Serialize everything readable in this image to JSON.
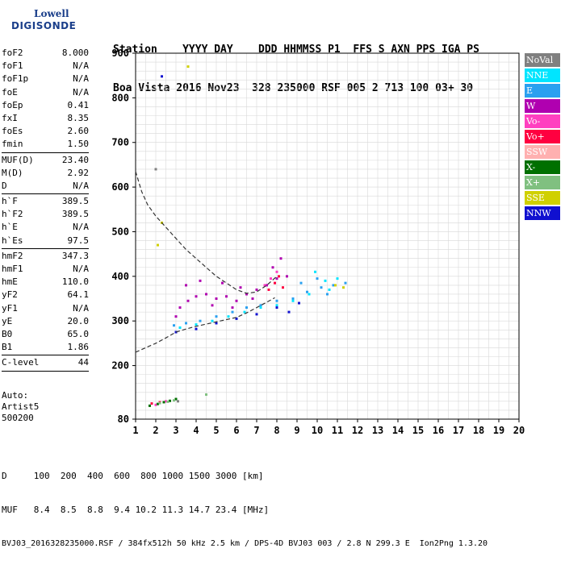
{
  "logo": {
    "line1": "Lowell",
    "line2": "DIGISONDE"
  },
  "header": {
    "line1": "Station    YYYY DAY    DDD HHMMSS P1  FFS S AXN PPS IGA PS",
    "line2": "Boa Vista 2016 Nov23  328 235000 RSF 005 2 713 100 03+ 30"
  },
  "params": [
    {
      "k": "foF2",
      "v": "8.000"
    },
    {
      "k": "foF1",
      "v": "N/A"
    },
    {
      "k": "foF1p",
      "v": "N/A"
    },
    {
      "k": "foE",
      "v": "N/A"
    },
    {
      "k": "foEp",
      "v": "0.41"
    },
    {
      "k": "fxI",
      "v": "8.35"
    },
    {
      "k": "foEs",
      "v": "2.60"
    },
    {
      "k": "fmin",
      "v": "1.50"
    },
    {
      "sep": true
    },
    {
      "k": "MUF(D)",
      "v": "23.40"
    },
    {
      "k": "M(D)",
      "v": "2.92"
    },
    {
      "k": "D",
      "v": "N/A"
    },
    {
      "sep": true
    },
    {
      "k": "h`F",
      "v": "389.5"
    },
    {
      "k": "h`F2",
      "v": "389.5"
    },
    {
      "k": "h`E",
      "v": "N/A"
    },
    {
      "k": "h`Es",
      "v": "97.5"
    },
    {
      "sep": true
    },
    {
      "k": "hmF2",
      "v": "347.3"
    },
    {
      "k": "hmF1",
      "v": "N/A"
    },
    {
      "k": "hmE",
      "v": "110.0"
    },
    {
      "k": "yF2",
      "v": "64.1"
    },
    {
      "k": "yF1",
      "v": "N/A"
    },
    {
      "k": "yE",
      "v": "20.0"
    },
    {
      "k": "B0",
      "v": "65.0"
    },
    {
      "k": "B1",
      "v": "1.86"
    },
    {
      "sep": true
    },
    {
      "k": "C-level",
      "v": "44"
    },
    {
      "sep": true
    }
  ],
  "autoscale": {
    "l1": "Auto:",
    "l2": "Artist5",
    "l3": "500200"
  },
  "bottom": {
    "dline": "D     100  200  400  600  800 1000 1500 3000 [km]",
    "mline": "MUF   8.4  8.5  8.8  9.4 10.2 11.3 14.7 23.4 [MHz]",
    "info": "BVJ03_2016328235000.RSF / 384fx512h 50 kHz 2.5 km / DPS-4D BVJ03 003 / 2.8 N 299.3 E  Ion2Png 1.3.20"
  },
  "legend": [
    {
      "label": "NoVal",
      "color": "#808080"
    },
    {
      "label": "NNE",
      "color": "#00e5ff"
    },
    {
      "label": "E",
      "color": "#2aa0f0"
    },
    {
      "label": "W",
      "color": "#b000b0"
    },
    {
      "label": "Vo-",
      "color": "#ff40c0"
    },
    {
      "label": "Vo+",
      "color": "#ff0040"
    },
    {
      "label": "SSW",
      "color": "#ffb0b0"
    },
    {
      "label": "X-",
      "color": "#007000"
    },
    {
      "label": "X+",
      "color": "#80c080"
    },
    {
      "label": "SSE",
      "color": "#d0d000"
    },
    {
      "label": "NNW",
      "color": "#1010d0"
    }
  ],
  "chart_data": {
    "type": "scatter",
    "xlim": [
      1,
      20
    ],
    "ylim": [
      80,
      900
    ],
    "xticks": [
      1,
      2,
      3,
      4,
      5,
      6,
      7,
      8,
      9,
      10,
      11,
      12,
      13,
      14,
      15,
      16,
      17,
      18,
      19,
      20
    ],
    "yticks": [
      80,
      200,
      300,
      400,
      500,
      600,
      700,
      800,
      900
    ],
    "grid": true,
    "legend_position": "right",
    "series": [
      {
        "name": "W",
        "color": "#b000b0",
        "points": [
          [
            3.2,
            330
          ],
          [
            3.6,
            345
          ],
          [
            4.0,
            355
          ],
          [
            4.5,
            360
          ],
          [
            5.0,
            350
          ],
          [
            5.5,
            355
          ],
          [
            6.0,
            345
          ],
          [
            6.5,
            360
          ],
          [
            7.0,
            370
          ],
          [
            7.5,
            380
          ],
          [
            8.0,
            395
          ],
          [
            8.5,
            400
          ],
          [
            3.5,
            380
          ],
          [
            4.2,
            390
          ],
          [
            5.3,
            385
          ],
          [
            6.2,
            375
          ],
          [
            7.8,
            420
          ],
          [
            8.2,
            440
          ],
          [
            3.0,
            310
          ],
          [
            4.8,
            335
          ],
          [
            5.8,
            330
          ],
          [
            6.8,
            350
          ]
        ]
      },
      {
        "name": "E",
        "color": "#2aa0f0",
        "points": [
          [
            2.9,
            290
          ],
          [
            3.5,
            295
          ],
          [
            4.2,
            300
          ],
          [
            5.0,
            310
          ],
          [
            5.8,
            320
          ],
          [
            6.5,
            330
          ],
          [
            7.2,
            335
          ],
          [
            8.0,
            345
          ],
          [
            8.8,
            350
          ],
          [
            9.5,
            365
          ],
          [
            10.2,
            375
          ],
          [
            10.8,
            380
          ],
          [
            11.4,
            385
          ],
          [
            9.2,
            385
          ],
          [
            10.0,
            395
          ],
          [
            10.5,
            360
          ]
        ]
      },
      {
        "name": "NNE",
        "color": "#00e5ff",
        "points": [
          [
            3.2,
            285
          ],
          [
            4.0,
            292
          ],
          [
            4.8,
            300
          ],
          [
            5.6,
            310
          ],
          [
            6.4,
            320
          ],
          [
            7.2,
            330
          ],
          [
            8.0,
            335
          ],
          [
            8.8,
            345
          ],
          [
            9.6,
            360
          ],
          [
            10.4,
            390
          ],
          [
            11.0,
            395
          ],
          [
            9.9,
            410
          ],
          [
            10.6,
            370
          ]
        ]
      },
      {
        "name": "NNW",
        "color": "#1010d0",
        "points": [
          [
            3.0,
            275
          ],
          [
            4.0,
            282
          ],
          [
            5.0,
            295
          ],
          [
            6.0,
            305
          ],
          [
            7.0,
            315
          ],
          [
            8.0,
            330
          ],
          [
            8.6,
            320
          ],
          [
            9.1,
            340
          ],
          [
            2.3,
            848
          ]
        ]
      },
      {
        "name": "Vo+",
        "color": "#ff0040",
        "points": [
          [
            7.6,
            370
          ],
          [
            7.9,
            385
          ],
          [
            8.1,
            400
          ],
          [
            8.3,
            375
          ],
          [
            1.8,
            115
          ],
          [
            2.2,
            118
          ]
        ]
      },
      {
        "name": "Vo-",
        "color": "#ff40c0",
        "points": [
          [
            7.4,
            380
          ],
          [
            7.7,
            395
          ],
          [
            8.0,
            410
          ],
          [
            2.5,
            120
          ],
          [
            2.0,
            112
          ]
        ]
      },
      {
        "name": "X-",
        "color": "#007000",
        "points": [
          [
            1.7,
            110
          ],
          [
            2.1,
            114
          ],
          [
            2.4,
            118
          ],
          [
            2.7,
            121
          ],
          [
            3.0,
            125
          ]
        ]
      },
      {
        "name": "X+",
        "color": "#80c080",
        "points": [
          [
            2.2,
            116
          ],
          [
            2.6,
            119
          ],
          [
            2.9,
            122
          ],
          [
            4.5,
            135
          ]
        ]
      },
      {
        "name": "SSE",
        "color": "#d0d000",
        "points": [
          [
            11.3,
            375
          ],
          [
            10.9,
            380
          ],
          [
            2.3,
            520
          ],
          [
            3.6,
            870
          ],
          [
            2.1,
            470
          ]
        ]
      },
      {
        "name": "NoVal",
        "color": "#808080",
        "points": [
          [
            3.1,
            120
          ],
          [
            2.0,
            640
          ]
        ]
      }
    ],
    "curves": [
      {
        "points": [
          [
            1,
            635
          ],
          [
            1.3,
            590
          ],
          [
            1.6,
            560
          ],
          [
            2.0,
            535
          ],
          [
            2.5,
            510
          ],
          [
            3.0,
            485
          ],
          [
            3.5,
            460
          ],
          [
            4.0,
            440
          ],
          [
            4.5,
            420
          ],
          [
            5.0,
            400
          ],
          [
            5.5,
            385
          ],
          [
            6.0,
            370
          ],
          [
            6.5,
            362
          ],
          [
            7.0,
            365
          ],
          [
            7.5,
            380
          ],
          [
            8.0,
            400
          ]
        ]
      },
      {
        "points": [
          [
            1,
            230
          ],
          [
            1.5,
            240
          ],
          [
            2.0,
            250
          ],
          [
            2.5,
            262
          ],
          [
            3.0,
            275
          ],
          [
            3.5,
            282
          ],
          [
            4.0,
            288
          ],
          [
            4.5,
            293
          ],
          [
            5.0,
            298
          ],
          [
            5.5,
            303
          ],
          [
            6.0,
            308
          ],
          [
            6.5,
            318
          ],
          [
            7.0,
            330
          ],
          [
            7.5,
            342
          ],
          [
            7.9,
            352
          ]
        ]
      }
    ]
  }
}
